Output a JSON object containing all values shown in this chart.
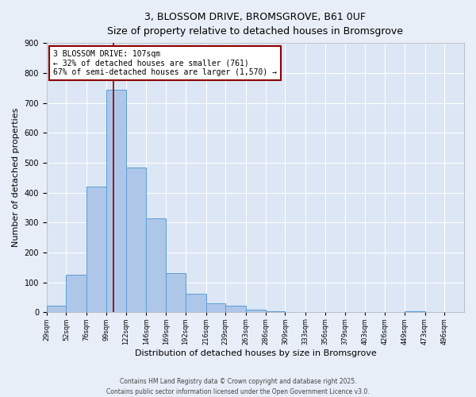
{
  "title_line1": "3, BLOSSOM DRIVE, BROMSGROVE, B61 0UF",
  "title_line2": "Size of property relative to detached houses in Bromsgrove",
  "xlabel": "Distribution of detached houses by size in Bromsgrove",
  "ylabel": "Number of detached properties",
  "bin_labels": [
    "29sqm",
    "52sqm",
    "76sqm",
    "99sqm",
    "122sqm",
    "146sqm",
    "169sqm",
    "192sqm",
    "216sqm",
    "239sqm",
    "263sqm",
    "286sqm",
    "309sqm",
    "333sqm",
    "356sqm",
    "379sqm",
    "403sqm",
    "426sqm",
    "449sqm",
    "473sqm",
    "496sqm"
  ],
  "bin_edges": [
    29,
    52,
    76,
    99,
    122,
    146,
    169,
    192,
    216,
    239,
    263,
    286,
    309,
    333,
    356,
    379,
    403,
    426,
    449,
    473,
    496,
    519
  ],
  "bar_values": [
    22,
    125,
    420,
    743,
    485,
    315,
    132,
    63,
    30,
    22,
    10,
    5,
    0,
    0,
    0,
    0,
    0,
    0,
    3,
    0,
    0
  ],
  "bar_color": "#aec6e8",
  "bar_edge_color": "#5a9fd4",
  "vline_x": 107,
  "vline_color": "#8b0000",
  "annotation_line1": "3 BLOSSOM DRIVE: 107sqm",
  "annotation_line2": "← 32% of detached houses are smaller (761)",
  "annotation_line3": "67% of semi-detached houses are larger (1,570) →",
  "annotation_box_color": "#ffffff",
  "annotation_box_edge_color": "#8b0000",
  "ylim": [
    0,
    900
  ],
  "yticks": [
    0,
    100,
    200,
    300,
    400,
    500,
    600,
    700,
    800,
    900
  ],
  "bg_color": "#dce6f5",
  "fig_bg_color": "#e8eef8",
  "footer_line1": "Contains HM Land Registry data © Crown copyright and database right 2025.",
  "footer_line2": "Contains public sector information licensed under the Open Government Licence v3.0."
}
